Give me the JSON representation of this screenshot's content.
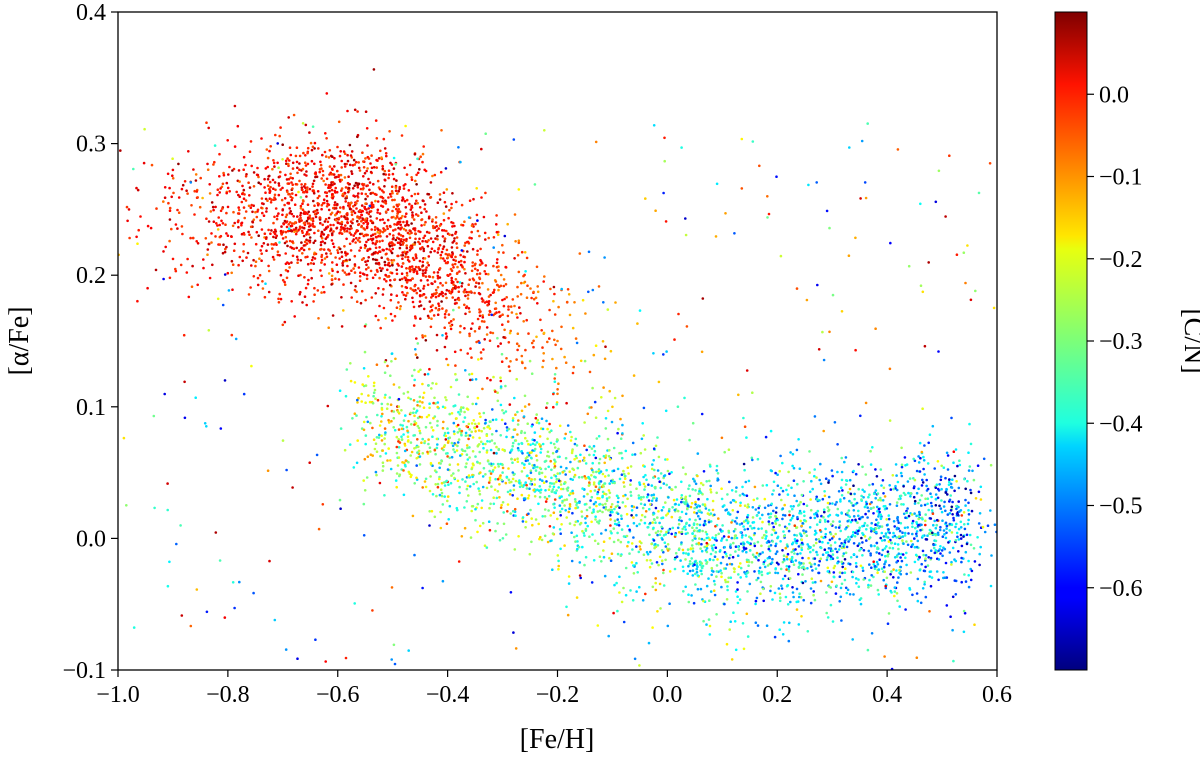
{
  "chart_data": {
    "type": "scatter",
    "title": "",
    "xlabel": "[Fe/H]",
    "ylabel": "[α/Fe]",
    "xlim": [
      -1.0,
      0.6
    ],
    "ylim": [
      -0.1,
      0.4
    ],
    "xticks": [
      -1.0,
      -0.8,
      -0.6,
      -0.4,
      -0.2,
      0.0,
      0.2,
      0.4,
      0.6
    ],
    "xtick_labels": [
      "−1.0",
      "−0.8",
      "−0.6",
      "−0.4",
      "−0.2",
      "0.0",
      "0.2",
      "0.4",
      "0.6"
    ],
    "yticks": [
      -0.1,
      0.0,
      0.1,
      0.2,
      0.3,
      0.4
    ],
    "ytick_labels": [
      "−0.1",
      "0.0",
      "0.1",
      "0.2",
      "0.3",
      "0.4"
    ],
    "grid": false,
    "colorbar": {
      "label": "[C/N]",
      "colormap": "jet",
      "range": [
        -0.7,
        0.1
      ],
      "ticks": [
        0.0,
        -0.1,
        -0.2,
        -0.3,
        -0.4,
        -0.5,
        -0.6
      ],
      "tick_labels": [
        "0.0",
        "−0.1",
        "−0.2",
        "−0.3",
        "−0.4",
        "−0.5",
        "−0.6"
      ]
    },
    "populations": [
      {
        "description": "high-alpha sequence, high [C/N]",
        "feh_range": [
          -1.0,
          0.1
        ],
        "alpha_center_at_feh_-0.55": 0.24,
        "cn_center": -0.02
      },
      {
        "description": "low-alpha sequence, low [C/N]",
        "feh_range": [
          -0.6,
          0.6
        ],
        "alpha_center_at_feh_-0.4": 0.08,
        "alpha_center_at_feh_0.2": 0.0,
        "cn_center": -0.42
      }
    ],
    "representative_points": [
      {
        "x": -0.98,
        "y": 0.25,
        "cn": 0.02
      },
      {
        "x": -0.9,
        "y": 0.28,
        "cn": 0.01
      },
      {
        "x": -0.8,
        "y": 0.23,
        "cn": 0.0
      },
      {
        "x": -0.7,
        "y": 0.25,
        "cn": 0.03
      },
      {
        "x": -0.6,
        "y": 0.24,
        "cn": 0.02
      },
      {
        "x": -0.5,
        "y": 0.22,
        "cn": 0.0
      },
      {
        "x": -0.4,
        "y": 0.2,
        "cn": -0.02
      },
      {
        "x": -0.3,
        "y": 0.17,
        "cn": -0.06
      },
      {
        "x": -0.2,
        "y": 0.15,
        "cn": -0.1
      },
      {
        "x": -0.1,
        "y": 0.1,
        "cn": -0.16
      },
      {
        "x": 0.0,
        "y": 0.06,
        "cn": -0.2
      },
      {
        "x": -0.45,
        "y": 0.08,
        "cn": -0.3
      },
      {
        "x": -0.3,
        "y": 0.05,
        "cn": -0.35
      },
      {
        "x": -0.1,
        "y": 0.02,
        "cn": -0.4
      },
      {
        "x": 0.1,
        "y": 0.0,
        "cn": -0.45
      },
      {
        "x": 0.2,
        "y": -0.01,
        "cn": -0.5
      },
      {
        "x": 0.3,
        "y": 0.0,
        "cn": -0.55
      },
      {
        "x": 0.4,
        "y": 0.01,
        "cn": -0.5
      },
      {
        "x": 0.5,
        "y": 0.02,
        "cn": -0.42
      }
    ]
  }
}
